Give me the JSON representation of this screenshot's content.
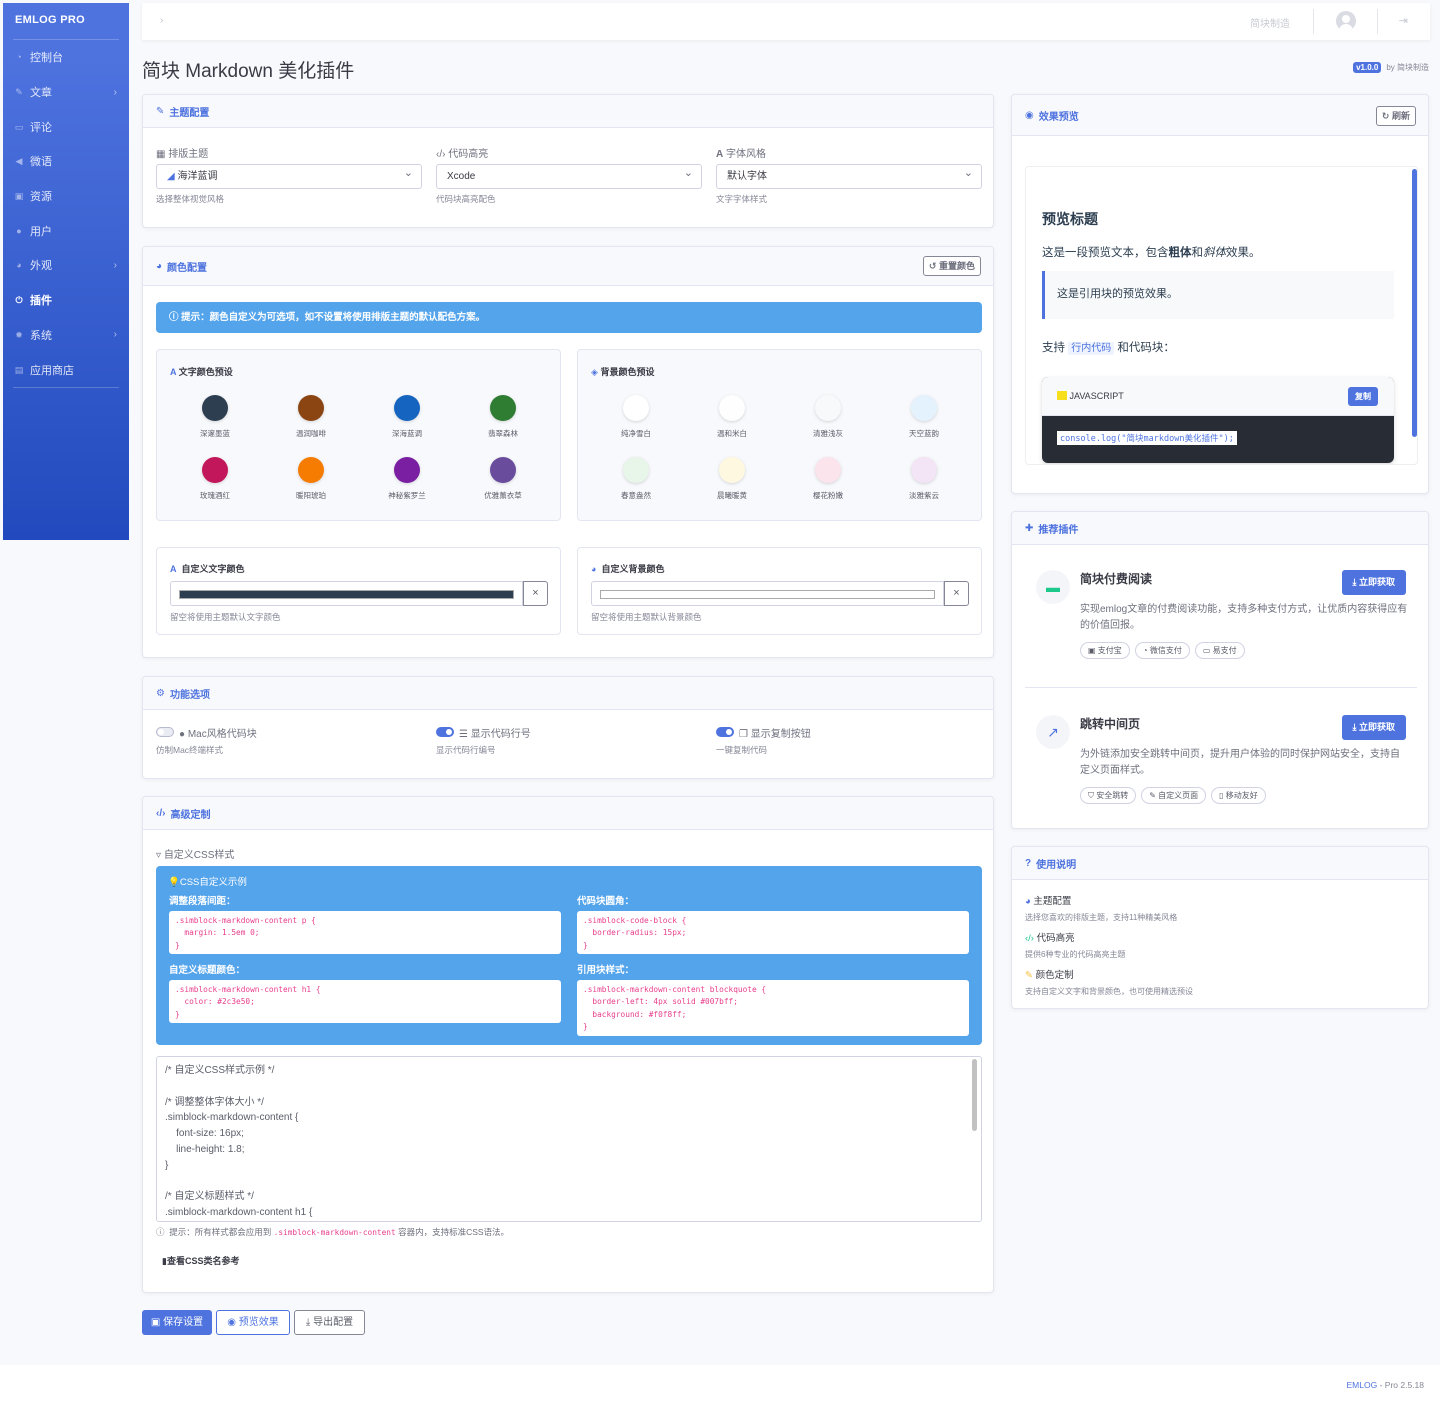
{
  "sidebar": {
    "brand": "EMLOG PRO",
    "items": [
      {
        "label": "控制台",
        "icon": "dashboard-icon",
        "chevron": false
      },
      {
        "label": "文章",
        "icon": "pencil-icon",
        "chevron": true
      },
      {
        "label": "评论",
        "icon": "comment-icon",
        "chevron": false
      },
      {
        "label": "微语",
        "icon": "bullhorn-icon",
        "chevron": false
      },
      {
        "label": "资源",
        "icon": "image-icon",
        "chevron": false
      },
      {
        "label": "用户",
        "icon": "user-icon",
        "chevron": false
      },
      {
        "label": "外观",
        "icon": "palette-icon",
        "chevron": true
      },
      {
        "label": "插件",
        "icon": "plug-icon",
        "chevron": false,
        "active": true
      },
      {
        "label": "系统",
        "icon": "gear-icon",
        "chevron": true
      },
      {
        "label": "应用商店",
        "icon": "store-icon",
        "chevron": false
      }
    ]
  },
  "topbar": {
    "breadcrumb_sep": "›",
    "site_name": "简块制造",
    "logout_icon": "logout-icon"
  },
  "page": {
    "title": "简块 Markdown 美化插件",
    "version": "v1.0.0",
    "by": "by 简块制造"
  },
  "theme_card": {
    "title": "主题配置",
    "fields": [
      {
        "label": "排版主题",
        "value": "海洋蓝调",
        "help": "选择整体视觉风格"
      },
      {
        "label": "代码高亮",
        "value": "Xcode",
        "help": "代码块高亮配色"
      },
      {
        "label": "字体风格",
        "value": "默认字体",
        "help": "文字字体样式"
      }
    ]
  },
  "color_card": {
    "title": "颜色配置",
    "reset_label": "重置颜色",
    "alert": "提示：颜色自定义为可选项，如不设置将使用排版主题的默认配色方案。",
    "text_presets_title": "文字颜色预设",
    "text_presets": [
      {
        "name": "深邃墨蓝",
        "color": "#2c3e50"
      },
      {
        "name": "温润咖啡",
        "color": "#8b4513"
      },
      {
        "name": "深海蓝调",
        "color": "#1565c0"
      },
      {
        "name": "翡翠森林",
        "color": "#2e7d32"
      },
      {
        "name": "玫瑰酒红",
        "color": "#c2185b"
      },
      {
        "name": "暖阳琥珀",
        "color": "#f57c00"
      },
      {
        "name": "神秘紫罗兰",
        "color": "#7b1fa2"
      },
      {
        "name": "优雅薰衣草",
        "color": "#6a4c9c"
      }
    ],
    "bg_presets_title": "背景颜色预设",
    "bg_presets": [
      {
        "name": "纯净雪白",
        "color": "#ffffff"
      },
      {
        "name": "温和米白",
        "color": "#fefefe"
      },
      {
        "name": "清雅浅灰",
        "color": "#f8f9fa"
      },
      {
        "name": "天空蓝韵",
        "color": "#e3f2fd"
      },
      {
        "name": "春意盎然",
        "color": "#e8f5e9"
      },
      {
        "name": "晨曦暖黄",
        "color": "#fff8e1"
      },
      {
        "name": "樱花粉嫩",
        "color": "#fce4ec"
      },
      {
        "name": "淡雅紫云",
        "color": "#f3e5f5"
      }
    ],
    "custom_text_title": "自定义文字颜色",
    "custom_text_color": "#2c3e50",
    "custom_text_help": "留空将使用主题默认文字颜色",
    "custom_bg_title": "自定义背景颜色",
    "custom_bg_color": "#ffffff",
    "custom_bg_help": "留空将使用主题默认背景颜色",
    "clear_label": "×"
  },
  "features_card": {
    "title": "功能选项",
    "options": [
      {
        "label": "Mac风格代码块",
        "help": "仿制Mac终端样式",
        "on": false
      },
      {
        "label": "显示代码行号",
        "help": "显示代码行编号",
        "on": true
      },
      {
        "label": "显示复制按钮",
        "help": "一键复制代码",
        "on": true
      }
    ]
  },
  "advanced_card": {
    "title": "高级定制",
    "css_label": "自定义CSS样式",
    "example_title": "CSS自定义示例",
    "examples": [
      {
        "title": "调整段落间距：",
        "code": ".simblock-markdown-content p {\n  margin: 1.5em 0;\n}"
      },
      {
        "title": "代码块圆角：",
        "code": ".simblock-code-block {\n  border-radius: 15px;\n}"
      },
      {
        "title": "自定义标题颜色：",
        "code": ".simblock-markdown-content h1 {\n  color: #2c3e50;\n}"
      },
      {
        "title": "引用块样式：",
        "code": ".simblock-markdown-content blockquote {\n  border-left: 4px solid #007bff;\n  background: #f0f8ff;\n}"
      }
    ],
    "textarea_value": "/* 自定义CSS样式示例 */\n\n/* 调整整体字体大小 */\n.simblock-markdown-content {\n    font-size: 16px;\n    line-height: 1.8;\n}\n\n/* 自定义标题样式 */\n.simblock-markdown-content h1 {",
    "hint_prefix": "提示：所有样式都会应用到",
    "hint_code": ".simblock-markdown-content",
    "hint_suffix": "容器内，支持标准CSS语法。",
    "ref_link": "查看CSS类名参考"
  },
  "actions": {
    "save": "保存设置",
    "preview": "预览效果",
    "export": "导出配置"
  },
  "preview_card": {
    "title": "效果预览",
    "refresh": "刷新",
    "heading": "预览标题",
    "para_prefix": "这是一段预览文本，包含",
    "para_bold": "粗体",
    "para_mid": "和",
    "para_italic": "斜体",
    "para_suffix": "效果。",
    "quote": "这是引用块的预览效果。",
    "support_prefix": "支持",
    "support_code": "行内代码",
    "support_suffix": "和代码块：",
    "code_lang": "JAVASCRIPT",
    "copy": "复制",
    "code_line": "console.log(\"简块markdown美化插件\");"
  },
  "plugins_card": {
    "title": "推荐插件",
    "items": [
      {
        "name": "简块付费阅读",
        "desc": "实现emlog文章的付费阅读功能，支持多种支付方式，让优质内容获得应有的价值回报。",
        "btn": "立即获取",
        "tags": [
          "支付宝",
          "微信支付",
          "易支付"
        ],
        "icon": "money-icon"
      },
      {
        "name": "跳转中间页",
        "desc": "为外链添加安全跳转中间页，提升用户体验的同时保护网站安全，支持自定义页面样式。",
        "btn": "立即获取",
        "tags": [
          "安全跳转",
          "自定义页面",
          "移动友好"
        ],
        "icon": "external-link-icon"
      }
    ]
  },
  "usage_card": {
    "title": "使用说明",
    "items": [
      {
        "title": "主题配置",
        "desc": "选择您喜欢的排版主题，支持11种精美风格",
        "icon": "palette-icon"
      },
      {
        "title": "代码高亮",
        "desc": "提供6种专业的代码高亮主题",
        "icon": "code-icon"
      },
      {
        "title": "颜色定制",
        "desc": "支持自定义文字和背景颜色，也可使用精选预设",
        "icon": "brush-icon"
      }
    ]
  },
  "footer": {
    "brand": "EMLOG",
    "suffix": " - Pro 2.5.18"
  }
}
